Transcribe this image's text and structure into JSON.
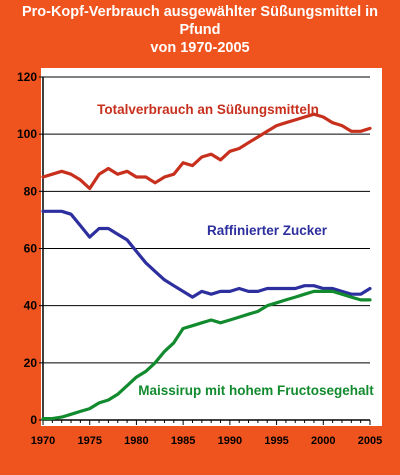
{
  "chart_data": {
    "type": "line",
    "title_line1": "Pro-Kopf-Verbrauch ausgewählter Süßungsmittel in Pfund",
    "title_line2": "von 1970-2005",
    "xlabel": "",
    "ylabel": "",
    "xlim": [
      1970,
      2005
    ],
    "ylim": [
      0,
      120
    ],
    "x_ticks": [
      1970,
      1975,
      1980,
      1985,
      1990,
      1995,
      2000,
      2005
    ],
    "y_ticks": [
      0,
      20,
      40,
      60,
      80,
      100,
      120
    ],
    "grid": "horizontal",
    "x": [
      1970,
      1971,
      1972,
      1973,
      1974,
      1975,
      1976,
      1977,
      1978,
      1979,
      1980,
      1981,
      1982,
      1983,
      1984,
      1985,
      1986,
      1987,
      1988,
      1989,
      1990,
      1991,
      1992,
      1993,
      1994,
      1995,
      1996,
      1997,
      1998,
      1999,
      2000,
      2001,
      2002,
      2003,
      2004,
      2005
    ],
    "series": [
      {
        "name": "Totalverbrauch an Süßungsmitteln",
        "color": "#c8301e",
        "values": [
          85,
          86,
          87,
          86,
          84,
          81,
          86,
          88,
          86,
          87,
          85,
          85,
          83,
          85,
          86,
          90,
          89,
          92,
          93,
          91,
          94,
          95,
          97,
          99,
          101,
          103,
          104,
          105,
          106,
          107,
          106,
          104,
          103,
          101,
          101,
          102
        ]
      },
      {
        "name": "Raffinierter Zucker",
        "color": "#2d2f9e",
        "values": [
          73,
          73,
          73,
          72,
          68,
          64,
          67,
          67,
          65,
          63,
          59,
          55,
          52,
          49,
          47,
          45,
          43,
          45,
          44,
          45,
          45,
          46,
          45,
          45,
          46,
          46,
          46,
          46,
          47,
          47,
          46,
          46,
          45,
          44,
          44,
          46
        ]
      },
      {
        "name": "Maissirup mit hohem Fructosegehalt",
        "color": "#128a2e",
        "values": [
          0.5,
          0.5,
          1,
          2,
          3,
          4,
          6,
          7,
          9,
          12,
          15,
          17,
          20,
          24,
          27,
          32,
          33,
          34,
          35,
          34,
          35,
          36,
          37,
          38,
          40,
          41,
          42,
          43,
          44,
          45,
          45,
          45,
          44,
          43,
          42,
          42
        ]
      }
    ]
  }
}
